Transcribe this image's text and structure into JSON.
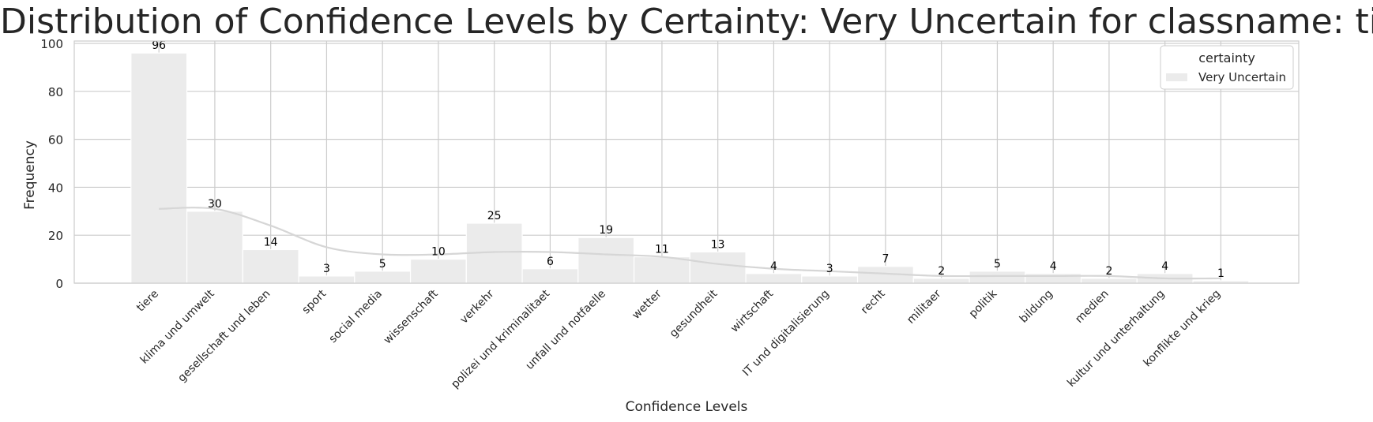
{
  "chart_data": {
    "type": "bar",
    "title": "Distribution of Confidence Levels by Certainty: Very Uncertain for classname: tiere",
    "xlabel": "Confidence Levels",
    "ylabel": "Frequency",
    "categories": [
      "tiere",
      "klima und umwelt",
      "gesellschaft und leben",
      "sport",
      "social media",
      "wissenschaft",
      "verkehr",
      "polizei und kriminalitaet",
      "unfall und notfaelle",
      "wetter",
      "gesundheit",
      "wirtschaft",
      "IT und digitalisierung",
      "recht",
      "militaer",
      "politik",
      "bildung",
      "medien",
      "kultur und unterhaltung",
      "konflikte und krieg"
    ],
    "series": [
      {
        "name": "Very Uncertain",
        "values": [
          96,
          30,
          14,
          3,
          5,
          10,
          25,
          6,
          19,
          11,
          13,
          4,
          3,
          7,
          2,
          5,
          4,
          2,
          4,
          1
        ]
      }
    ],
    "data_labels": [
      "96",
      "30",
      "14",
      "3",
      "5",
      "10",
      "25",
      "6",
      "19",
      "11",
      "13",
      "4",
      "3",
      "7",
      "2",
      "5",
      "4",
      "2",
      "4",
      "1"
    ],
    "kde_line": [
      31,
      31,
      24,
      15,
      12,
      12,
      13,
      13,
      12,
      11,
      8,
      6,
      5,
      4,
      3,
      3,
      3,
      3,
      2,
      2
    ],
    "ylim": [
      0,
      101
    ],
    "yticks": [
      0,
      20,
      40,
      60,
      80,
      100
    ],
    "grid": true,
    "legend": {
      "title": "certainty",
      "entries": [
        "Very Uncertain"
      ],
      "placement": "top-right"
    },
    "colors": {
      "bar": "#ebebeb",
      "kde": "#d6d6d6",
      "grid": "#cccccc",
      "text": "#262626"
    }
  }
}
